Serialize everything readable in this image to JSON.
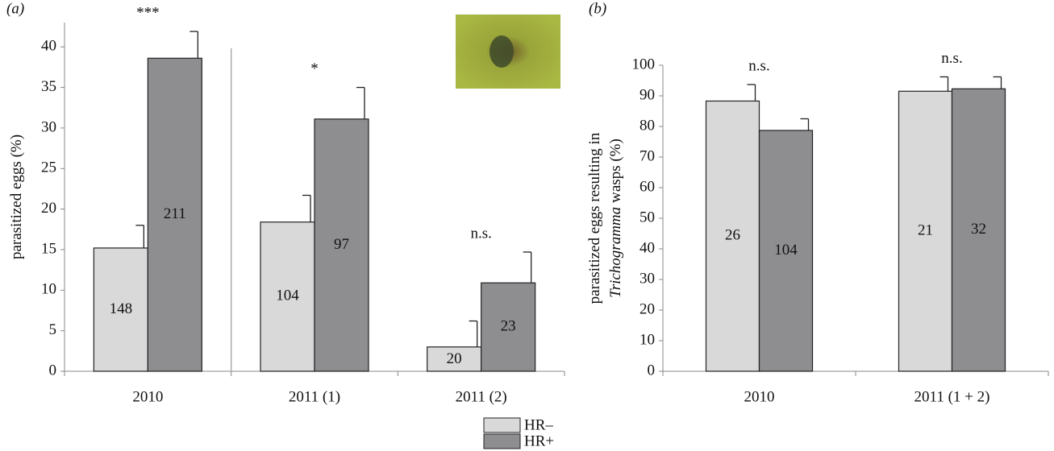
{
  "chart_data": [
    {
      "type": "bar",
      "panel_label": "(a)",
      "y_label": [
        "parasitized eggs (%)"
      ],
      "y_label_italic": [
        false
      ],
      "categories": [
        "2010",
        "2011 (1)",
        "2011 (2)"
      ],
      "series": [
        {
          "name": "HR–",
          "color": "#d9d9d9",
          "values": [
            15.2,
            18.4,
            3.0
          ],
          "errors": [
            2.8,
            3.3,
            3.2
          ],
          "sample_sizes": [
            148,
            104,
            20
          ]
        },
        {
          "name": "HR+",
          "color": "#8e8e91",
          "values": [
            38.6,
            31.1,
            10.9
          ],
          "errors": [
            3.3,
            3.9,
            3.8
          ],
          "sample_sizes": [
            211,
            97,
            23
          ]
        }
      ],
      "annotations": [
        "***",
        "*",
        "n.s."
      ],
      "ylim": [
        0,
        43
      ],
      "yticks": [
        0,
        5,
        10,
        15,
        20,
        25,
        30,
        35,
        40
      ],
      "separator": true,
      "photo": true
    },
    {
      "type": "bar",
      "panel_label": "(b)",
      "y_label": [
        "parasitized eggs resulting in",
        "Trichogramma",
        "wasps (%)"
      ],
      "y_label_italic": [
        false,
        true,
        false
      ],
      "categories": [
        "2010",
        "2011 (1 + 2)"
      ],
      "series": [
        {
          "color": "#d9d9d9",
          "values": [
            88.3,
            91.5
          ],
          "errors": [
            5.4,
            4.7
          ],
          "sample_sizes": [
            26,
            21
          ]
        },
        {
          "color": "#8e8e91",
          "values": [
            78.7,
            92.3
          ],
          "errors": [
            3.8,
            3.9
          ],
          "sample_sizes": [
            104,
            32
          ]
        }
      ],
      "annotations": [
        "n.s.",
        "n.s."
      ],
      "ylim": [
        0,
        100
      ],
      "yticks": [
        0,
        10,
        20,
        30,
        40,
        50,
        60,
        70,
        80,
        90,
        100
      ],
      "separator": false,
      "photo": false
    }
  ]
}
